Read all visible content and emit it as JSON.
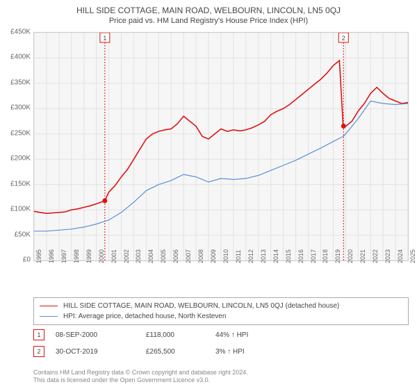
{
  "title": "HILL SIDE COTTAGE, MAIN ROAD, WELBOURN, LINCOLN, LN5 0QJ",
  "subtitle": "Price paid vs. HM Land Registry's House Price Index (HPI)",
  "chart": {
    "type": "line",
    "background_color": "#f6f6f6",
    "grid_color": "#e2e2e2",
    "border_color": "#cccccc",
    "xlim": [
      1995,
      2025
    ],
    "ylim": [
      0,
      450000
    ],
    "ytick_step": 50000,
    "ylabels": [
      "£0",
      "£50K",
      "£100K",
      "£150K",
      "£200K",
      "£250K",
      "£300K",
      "£350K",
      "£400K",
      "£450K"
    ],
    "xticks": [
      1995,
      1996,
      1997,
      1998,
      1999,
      2000,
      2001,
      2002,
      2003,
      2004,
      2005,
      2006,
      2007,
      2008,
      2009,
      2010,
      2011,
      2012,
      2013,
      2014,
      2015,
      2016,
      2017,
      2018,
      2019,
      2020,
      2021,
      2022,
      2023,
      2024,
      2025
    ],
    "series": [
      {
        "name": "HILL SIDE COTTAGE, MAIN ROAD, WELBOURN, LINCOLN, LN5 0QJ (detached house)",
        "color": "#e01010",
        "line_width": 1.6,
        "data": [
          [
            1995,
            97000
          ],
          [
            1995.5,
            95000
          ],
          [
            1996,
            93000
          ],
          [
            1996.5,
            94000
          ],
          [
            1997,
            95000
          ],
          [
            1997.5,
            96000
          ],
          [
            1998,
            100000
          ],
          [
            1998.5,
            102000
          ],
          [
            1999,
            105000
          ],
          [
            1999.5,
            108000
          ],
          [
            2000,
            112000
          ],
          [
            2000.68,
            118000
          ],
          [
            2001,
            135000
          ],
          [
            2001.5,
            148000
          ],
          [
            2002,
            165000
          ],
          [
            2002.5,
            180000
          ],
          [
            2003,
            200000
          ],
          [
            2003.5,
            220000
          ],
          [
            2004,
            240000
          ],
          [
            2004.5,
            250000
          ],
          [
            2005,
            255000
          ],
          [
            2005.5,
            258000
          ],
          [
            2006,
            260000
          ],
          [
            2006.5,
            270000
          ],
          [
            2007,
            285000
          ],
          [
            2007.5,
            275000
          ],
          [
            2008,
            265000
          ],
          [
            2008.5,
            245000
          ],
          [
            2009,
            240000
          ],
          [
            2009.5,
            250000
          ],
          [
            2010,
            260000
          ],
          [
            2010.5,
            255000
          ],
          [
            2011,
            258000
          ],
          [
            2011.5,
            256000
          ],
          [
            2012,
            258000
          ],
          [
            2012.5,
            262000
          ],
          [
            2013,
            268000
          ],
          [
            2013.5,
            275000
          ],
          [
            2014,
            288000
          ],
          [
            2014.5,
            295000
          ],
          [
            2015,
            300000
          ],
          [
            2015.5,
            308000
          ],
          [
            2016,
            318000
          ],
          [
            2016.5,
            328000
          ],
          [
            2017,
            338000
          ],
          [
            2017.5,
            348000
          ],
          [
            2018,
            358000
          ],
          [
            2018.5,
            370000
          ],
          [
            2019,
            385000
          ],
          [
            2019.5,
            395000
          ],
          [
            2019.8,
            265500
          ],
          [
            2020,
            265000
          ],
          [
            2020.5,
            275000
          ],
          [
            2021,
            295000
          ],
          [
            2021.5,
            310000
          ],
          [
            2022,
            330000
          ],
          [
            2022.5,
            342000
          ],
          [
            2023,
            330000
          ],
          [
            2023.5,
            320000
          ],
          [
            2024,
            315000
          ],
          [
            2024.5,
            310000
          ],
          [
            2025,
            312000
          ]
        ]
      },
      {
        "name": "HPI: Average price, detached house, North Kesteven",
        "color": "#5b8fd6",
        "line_width": 1.2,
        "data": [
          [
            1995,
            58000
          ],
          [
            1996,
            58000
          ],
          [
            1997,
            60000
          ],
          [
            1998,
            62000
          ],
          [
            1999,
            66000
          ],
          [
            2000,
            72000
          ],
          [
            2001,
            80000
          ],
          [
            2002,
            95000
          ],
          [
            2003,
            115000
          ],
          [
            2004,
            138000
          ],
          [
            2005,
            150000
          ],
          [
            2006,
            158000
          ],
          [
            2007,
            170000
          ],
          [
            2008,
            165000
          ],
          [
            2009,
            155000
          ],
          [
            2010,
            162000
          ],
          [
            2011,
            160000
          ],
          [
            2012,
            162000
          ],
          [
            2013,
            168000
          ],
          [
            2014,
            178000
          ],
          [
            2015,
            188000
          ],
          [
            2016,
            198000
          ],
          [
            2017,
            210000
          ],
          [
            2018,
            222000
          ],
          [
            2019,
            235000
          ],
          [
            2019.8,
            245000
          ],
          [
            2020,
            250000
          ],
          [
            2021,
            280000
          ],
          [
            2022,
            315000
          ],
          [
            2023,
            310000
          ],
          [
            2024,
            308000
          ],
          [
            2025,
            310000
          ]
        ]
      }
    ],
    "markers": [
      {
        "num": "1",
        "x": 2000.68,
        "y": 118000,
        "color": "#e01010",
        "date": "08-SEP-2000",
        "price": "£118,000",
        "delta": "44% ↑ HPI"
      },
      {
        "num": "2",
        "x": 2019.83,
        "y": 265500,
        "color": "#e01010",
        "date": "30-OCT-2019",
        "price": "£265,500",
        "delta": "3% ↑ HPI"
      }
    ],
    "vline_color": "#e01010"
  },
  "footer_line1": "Contains HM Land Registry data © Crown copyright and database right 2024.",
  "footer_line2": "This data is licensed under the Open Government Licence v3.0."
}
